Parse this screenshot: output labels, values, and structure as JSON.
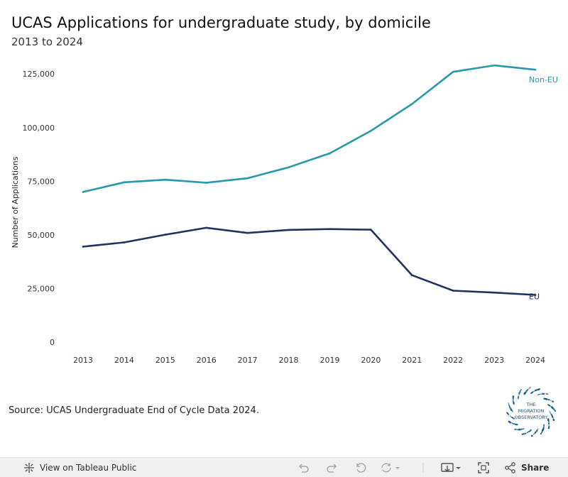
{
  "title": "UCAS Applications for undergraduate study, by domicile",
  "subtitle": "2013 to 2024",
  "source": "Source: UCAS Undergraduate End of Cycle Data 2024.",
  "logo_text": [
    "THE",
    "MIGRATION",
    "OBSERVATORY"
  ],
  "chart_data": {
    "type": "line",
    "title": "UCAS Applications for undergraduate study, by domicile",
    "xlabel": "",
    "ylabel": "Number of Applications",
    "x": [
      "2013",
      "2014",
      "2015",
      "2016",
      "2017",
      "2018",
      "2019",
      "2020",
      "2021",
      "2022",
      "2023",
      "2024"
    ],
    "ylim": [
      0,
      135000
    ],
    "yticks": [
      0,
      25000,
      50000,
      75000,
      100000,
      125000
    ],
    "ytick_labels": [
      "0",
      "25,000",
      "50,000",
      "75,000",
      "100,000",
      "125,000"
    ],
    "grid": false,
    "legend": "direct-labels-right",
    "series": [
      {
        "name": "Non-EU",
        "color": "#2799ab",
        "values": [
          70000,
          74500,
          75700,
          74300,
          76400,
          81500,
          88000,
          98500,
          111000,
          126000,
          129000,
          127000
        ]
      },
      {
        "name": "EU",
        "color": "#22325d",
        "values": [
          44500,
          46500,
          50100,
          53300,
          50900,
          52300,
          52700,
          52400,
          31200,
          24000,
          23100,
          22000
        ]
      }
    ]
  },
  "toolbar": {
    "view_label": "View on Tableau Public",
    "share_label": "Share",
    "icons": [
      "tableau-icon",
      "undo-icon",
      "redo-icon",
      "revert-icon",
      "refresh-icon",
      "pause-icon",
      "download-icon",
      "fullscreen-icon",
      "share-icon"
    ]
  }
}
